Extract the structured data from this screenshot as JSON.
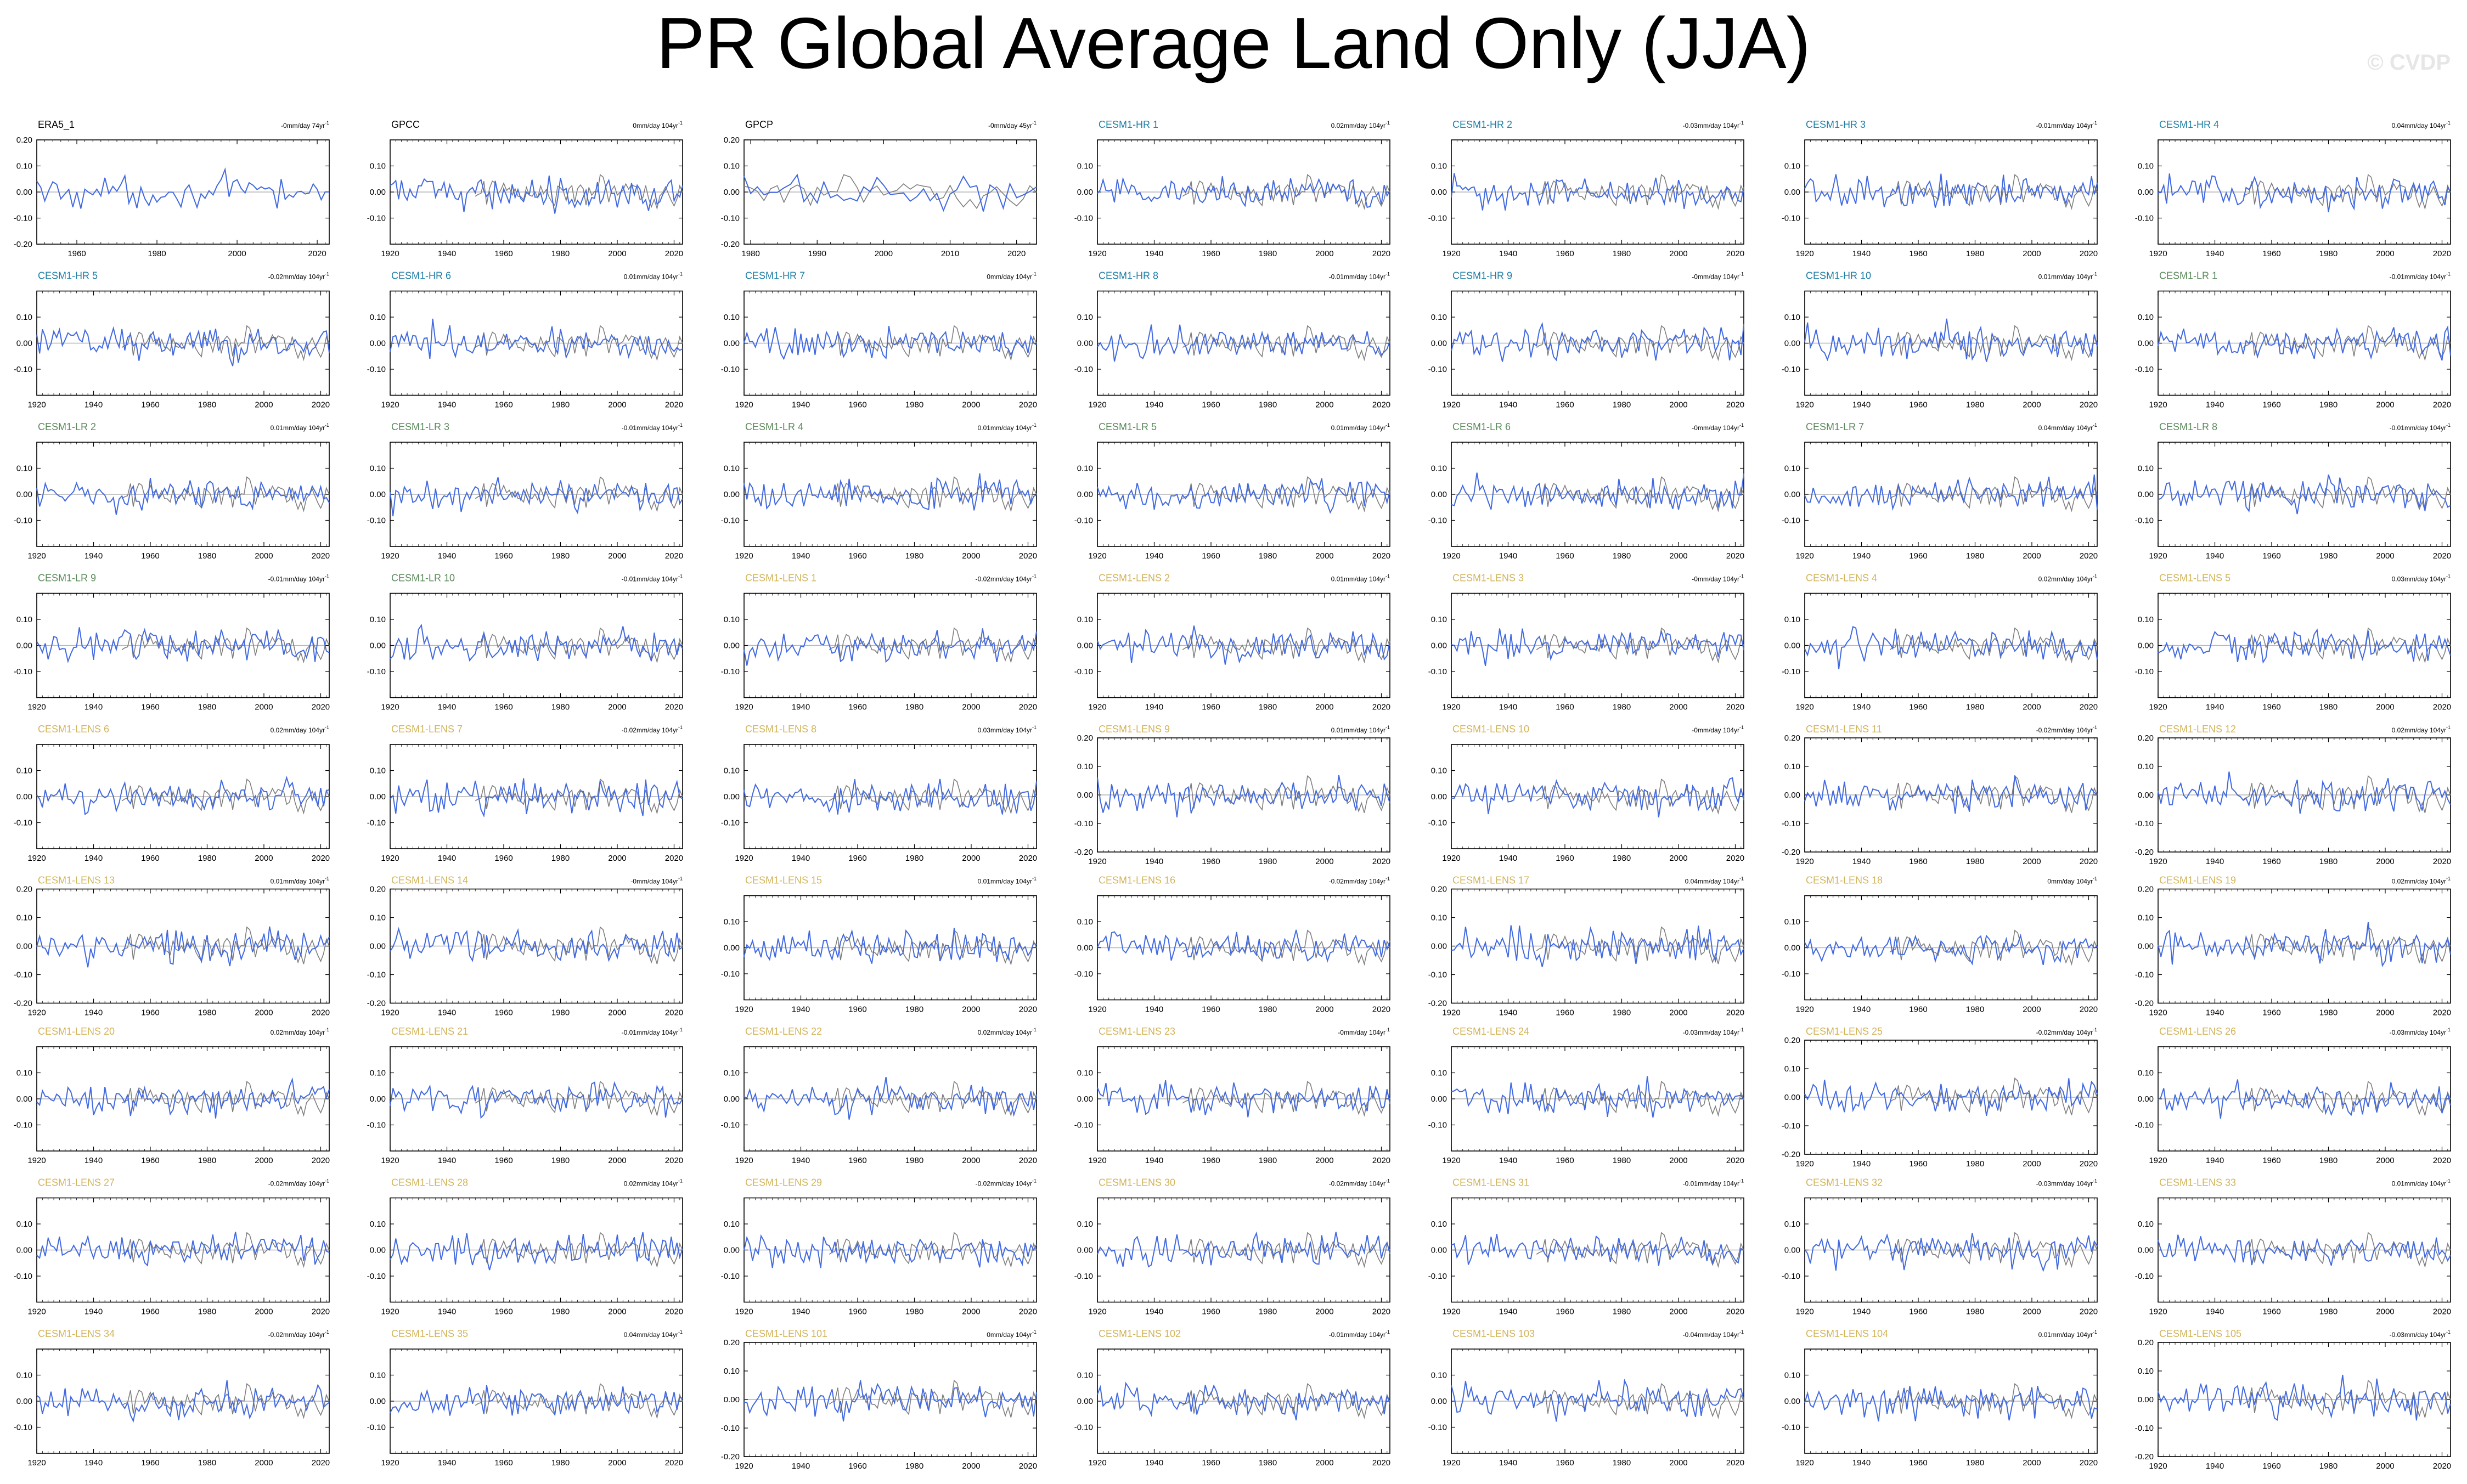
{
  "title": "PR Global Average Land Only (JJA)",
  "watermark": "© CVDP",
  "colors": {
    "observed_series": "#4169e1",
    "reference_series": "#7f7f7f",
    "zero_line": "#b4b4b4",
    "label_obs": "#000000",
    "label_hr": "#1f7fa6",
    "label_lr": "#5a8a5a",
    "label_lens": "#d2b45a"
  },
  "chart_data": [
    {
      "type": "line",
      "label": "ERA5_1",
      "label_group": "obs",
      "trend": "-0mm/day 74yr",
      "ylim": [
        -0.2,
        0.2
      ],
      "yticks": [
        -0.2,
        -0.1,
        0,
        0.1,
        0.2
      ],
      "ytick_labels": [
        "-0.20",
        "-0.10",
        "0.00",
        "0.10",
        "0.20"
      ],
      "xlim": [
        1950,
        2023
      ],
      "xticks": [
        1960,
        1980,
        2000,
        2020
      ],
      "series": [
        {
          "values_note": "annual JJA anomalies, 1950-2023",
          "overlay": false
        }
      ]
    },
    {
      "type": "line",
      "label": "GPCC",
      "label_group": "obs",
      "trend": "0mm/day 104yr",
      "ylim": [
        -0.2,
        0.2
      ],
      "yticks": [
        -0.1,
        0,
        0.1
      ],
      "ytick_labels": [
        "-0.10",
        "0.00",
        "0.10"
      ],
      "xlim": [
        1920,
        2023
      ],
      "xticks": [
        1920,
        1940,
        1960,
        1980,
        2000,
        2020
      ],
      "series": [
        {
          "overlay": true
        }
      ]
    },
    {
      "type": "line",
      "label": "GPCP",
      "label_group": "obs",
      "trend": "-0mm/day 45yr",
      "ylim": [
        -0.2,
        0.2
      ],
      "yticks": [
        -0.2,
        -0.1,
        0,
        0.1,
        0.2
      ],
      "ytick_labels": [
        "-0.20",
        "-0.10",
        "0.00",
        "0.10",
        "0.20"
      ],
      "xlim": [
        1979,
        2023
      ],
      "xticks": [
        1980,
        1990,
        2000,
        2010,
        2020
      ],
      "series": [
        {
          "overlay": true
        }
      ]
    },
    {
      "type": "line",
      "label": "CESM1-HR 1",
      "label_group": "hr",
      "trend": "0.02mm/day 104yr"
    },
    {
      "type": "line",
      "label": "CESM1-HR 2",
      "label_group": "hr",
      "trend": "-0.03mm/day 104yr"
    },
    {
      "type": "line",
      "label": "CESM1-HR 3",
      "label_group": "hr",
      "trend": "-0.01mm/day 104yr"
    },
    {
      "type": "line",
      "label": "CESM1-HR 4",
      "label_group": "hr",
      "trend": "0.04mm/day 104yr"
    },
    {
      "type": "line",
      "label": "CESM1-HR 5",
      "label_group": "hr",
      "trend": "-0.02mm/day 104yr"
    },
    {
      "type": "line",
      "label": "CESM1-HR 6",
      "label_group": "hr",
      "trend": "0.01mm/day 104yr"
    },
    {
      "type": "line",
      "label": "CESM1-HR 7",
      "label_group": "hr",
      "trend": "0mm/day 104yr"
    },
    {
      "type": "line",
      "label": "CESM1-HR 8",
      "label_group": "hr",
      "trend": "-0.01mm/day 104yr"
    },
    {
      "type": "line",
      "label": "CESM1-HR 9",
      "label_group": "hr",
      "trend": "-0mm/day 104yr"
    },
    {
      "type": "line",
      "label": "CESM1-HR 10",
      "label_group": "hr",
      "trend": "0.01mm/day 104yr"
    },
    {
      "type": "line",
      "label": "CESM1-LR 1",
      "label_group": "lr",
      "trend": "-0.01mm/day 104yr"
    },
    {
      "type": "line",
      "label": "CESM1-LR 2",
      "label_group": "lr",
      "trend": "0.01mm/day 104yr"
    },
    {
      "type": "line",
      "label": "CESM1-LR 3",
      "label_group": "lr",
      "trend": "-0.01mm/day 104yr"
    },
    {
      "type": "line",
      "label": "CESM1-LR 4",
      "label_group": "lr",
      "trend": "0.01mm/day 104yr"
    },
    {
      "type": "line",
      "label": "CESM1-LR 5",
      "label_group": "lr",
      "trend": "0.01mm/day 104yr"
    },
    {
      "type": "line",
      "label": "CESM1-LR 6",
      "label_group": "lr",
      "trend": "-0mm/day 104yr"
    },
    {
      "type": "line",
      "label": "CESM1-LR 7",
      "label_group": "lr",
      "trend": "0.04mm/day 104yr"
    },
    {
      "type": "line",
      "label": "CESM1-LR 8",
      "label_group": "lr",
      "trend": "-0.01mm/day 104yr"
    },
    {
      "type": "line",
      "label": "CESM1-LR 9",
      "label_group": "lr",
      "trend": "-0.01mm/day 104yr"
    },
    {
      "type": "line",
      "label": "CESM1-LR 10",
      "label_group": "lr",
      "trend": "-0.01mm/day 104yr"
    },
    {
      "type": "line",
      "label": "CESM1-LENS 1",
      "label_group": "lens",
      "trend": "-0.02mm/day 104yr"
    },
    {
      "type": "line",
      "label": "CESM1-LENS 2",
      "label_group": "lens",
      "trend": "0.01mm/day 104yr"
    },
    {
      "type": "line",
      "label": "CESM1-LENS 3",
      "label_group": "lens",
      "trend": "-0mm/day 104yr"
    },
    {
      "type": "line",
      "label": "CESM1-LENS 4",
      "label_group": "lens",
      "trend": "0.02mm/day 104yr"
    },
    {
      "type": "line",
      "label": "CESM1-LENS 5",
      "label_group": "lens",
      "trend": "0.03mm/day 104yr"
    },
    {
      "type": "line",
      "label": "CESM1-LENS 6",
      "label_group": "lens",
      "trend": "0.02mm/day 104yr"
    },
    {
      "type": "line",
      "label": "CESM1-LENS 7",
      "label_group": "lens",
      "trend": "-0.02mm/day 104yr"
    },
    {
      "type": "line",
      "label": "CESM1-LENS 8",
      "label_group": "lens",
      "trend": "0.03mm/day 104yr"
    },
    {
      "type": "line",
      "label": "CESM1-LENS 9",
      "label_group": "lens",
      "trend": "0.01mm/day 104yr",
      "wide": true
    },
    {
      "type": "line",
      "label": "CESM1-LENS 10",
      "label_group": "lens",
      "trend": "-0mm/day 104yr"
    },
    {
      "type": "line",
      "label": "CESM1-LENS 11",
      "label_group": "lens",
      "trend": "-0.02mm/day 104yr",
      "wide": true
    },
    {
      "type": "line",
      "label": "CESM1-LENS 12",
      "label_group": "lens",
      "trend": "0.02mm/day 104yr",
      "wide": true
    },
    {
      "type": "line",
      "label": "CESM1-LENS 13",
      "label_group": "lens",
      "trend": "0.01mm/day 104yr",
      "wide": true
    },
    {
      "type": "line",
      "label": "CESM1-LENS 14",
      "label_group": "lens",
      "trend": "-0mm/day 104yr",
      "wide": true
    },
    {
      "type": "line",
      "label": "CESM1-LENS 15",
      "label_group": "lens",
      "trend": "0.01mm/day 104yr"
    },
    {
      "type": "line",
      "label": "CESM1-LENS 16",
      "label_group": "lens",
      "trend": "-0.02mm/day 104yr"
    },
    {
      "type": "line",
      "label": "CESM1-LENS 17",
      "label_group": "lens",
      "trend": "0.04mm/day 104yr",
      "wide": true
    },
    {
      "type": "line",
      "label": "CESM1-LENS 18",
      "label_group": "lens",
      "trend": "0mm/day 104yr"
    },
    {
      "type": "line",
      "label": "CESM1-LENS 19",
      "label_group": "lens",
      "trend": "0.02mm/day 104yr",
      "wide": true
    },
    {
      "type": "line",
      "label": "CESM1-LENS 20",
      "label_group": "lens",
      "trend": "0.02mm/day 104yr"
    },
    {
      "type": "line",
      "label": "CESM1-LENS 21",
      "label_group": "lens",
      "trend": "-0.01mm/day 104yr"
    },
    {
      "type": "line",
      "label": "CESM1-LENS 22",
      "label_group": "lens",
      "trend": "0.02mm/day 104yr"
    },
    {
      "type": "line",
      "label": "CESM1-LENS 23",
      "label_group": "lens",
      "trend": "-0mm/day 104yr"
    },
    {
      "type": "line",
      "label": "CESM1-LENS 24",
      "label_group": "lens",
      "trend": "-0.03mm/day 104yr"
    },
    {
      "type": "line",
      "label": "CESM1-LENS 25",
      "label_group": "lens",
      "trend": "-0.02mm/day 104yr",
      "wide": true
    },
    {
      "type": "line",
      "label": "CESM1-LENS 26",
      "label_group": "lens",
      "trend": "-0.03mm/day 104yr"
    },
    {
      "type": "line",
      "label": "CESM1-LENS 27",
      "label_group": "lens",
      "trend": "-0.02mm/day 104yr"
    },
    {
      "type": "line",
      "label": "CESM1-LENS 28",
      "label_group": "lens",
      "trend": "0.02mm/day 104yr"
    },
    {
      "type": "line",
      "label": "CESM1-LENS 29",
      "label_group": "lens",
      "trend": "-0.02mm/day 104yr"
    },
    {
      "type": "line",
      "label": "CESM1-LENS 30",
      "label_group": "lens",
      "trend": "-0.02mm/day 104yr"
    },
    {
      "type": "line",
      "label": "CESM1-LENS 31",
      "label_group": "lens",
      "trend": "-0.01mm/day 104yr"
    },
    {
      "type": "line",
      "label": "CESM1-LENS 32",
      "label_group": "lens",
      "trend": "-0.03mm/day 104yr"
    },
    {
      "type": "line",
      "label": "CESM1-LENS 33",
      "label_group": "lens",
      "trend": "0.01mm/day 104yr"
    },
    {
      "type": "line",
      "label": "CESM1-LENS 34",
      "label_group": "lens",
      "trend": "-0.02mm/day 104yr"
    },
    {
      "type": "line",
      "label": "CESM1-LENS 35",
      "label_group": "lens",
      "trend": "0.04mm/day 104yr"
    },
    {
      "type": "line",
      "label": "CESM1-LENS 101",
      "label_group": "lens",
      "trend": "0mm/day 104yr",
      "wide": true
    },
    {
      "type": "line",
      "label": "CESM1-LENS 102",
      "label_group": "lens",
      "trend": "-0.01mm/day 104yr"
    },
    {
      "type": "line",
      "label": "CESM1-LENS 103",
      "label_group": "lens",
      "trend": "-0.04mm/day 104yr"
    },
    {
      "type": "line",
      "label": "CESM1-LENS 104",
      "label_group": "lens",
      "trend": "0.01mm/day 104yr"
    },
    {
      "type": "line",
      "label": "CESM1-LENS 105",
      "label_group": "lens",
      "trend": "-0.03mm/day 104yr",
      "wide": true
    }
  ],
  "defaults": {
    "xlim": [
      1920,
      2023
    ],
    "xticks": [
      1920,
      1940,
      1960,
      1980,
      2000,
      2020
    ],
    "ylim_normal": [
      -0.2,
      0.2
    ],
    "yticks_normal": [
      -0.1,
      0,
      0.1
    ],
    "ytick_labels_normal": [
      "-0.10",
      "0.00",
      "0.10"
    ],
    "yticks_wide": [
      -0.2,
      -0.1,
      0,
      0.1,
      0.2
    ],
    "ytick_labels_wide": [
      "-0.20",
      "-0.10",
      "0.00",
      "0.10",
      "0.20"
    ]
  }
}
